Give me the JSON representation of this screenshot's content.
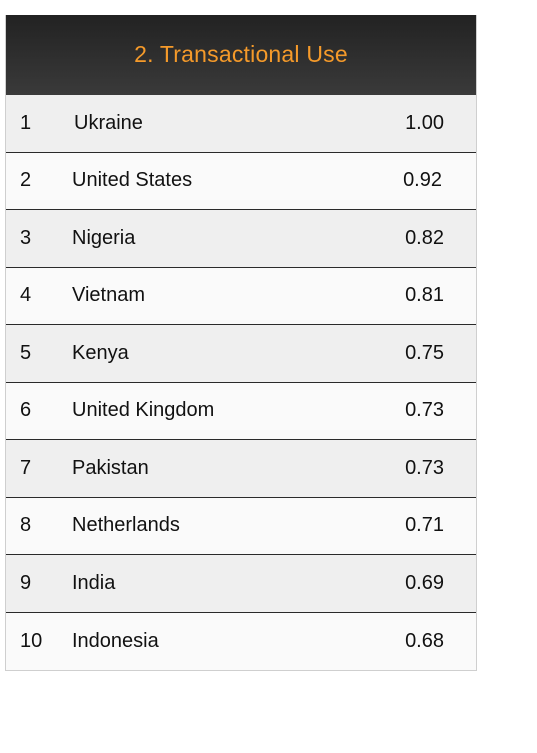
{
  "title": "2. Transactional Use",
  "rows": [
    {
      "rank": "1",
      "country": "Ukraine",
      "score": "1.00"
    },
    {
      "rank": "2",
      "country": "United States",
      "score": "0.92"
    },
    {
      "rank": "3",
      "country": "Nigeria",
      "score": "0.82"
    },
    {
      "rank": "4",
      "country": "Vietnam",
      "score": "0.81"
    },
    {
      "rank": "5",
      "country": "Kenya",
      "score": "0.75"
    },
    {
      "rank": "6",
      "country": "United Kingdom",
      "score": "0.73"
    },
    {
      "rank": "7",
      "country": "Pakistan",
      "score": "0.73"
    },
    {
      "rank": "8",
      "country": "Netherlands",
      "score": "0.71"
    },
    {
      "rank": "9",
      "country": "India",
      "score": "0.69"
    },
    {
      "rank": "10",
      "country": "Indonesia",
      "score": "0.68"
    }
  ],
  "colors": {
    "title": "#f59a2a",
    "header_background": "#2c2c2c",
    "row_shaded": "#efefef",
    "row_plain": "#fafafa"
  }
}
